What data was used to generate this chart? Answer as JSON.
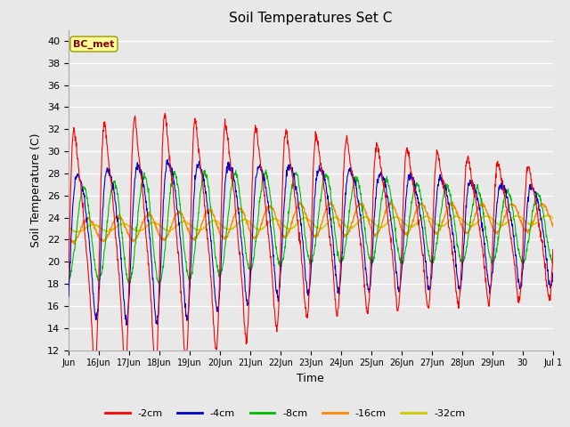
{
  "title": "Soil Temperatures Set C",
  "xlabel": "Time",
  "ylabel": "Soil Temperature (C)",
  "ylim": [
    12,
    41
  ],
  "yticks": [
    12,
    14,
    16,
    18,
    20,
    22,
    24,
    26,
    28,
    30,
    32,
    34,
    36,
    38,
    40
  ],
  "colors": {
    "-2cm": "#ff0000",
    "-4cm": "#0000cc",
    "-8cm": "#00bb00",
    "-16cm": "#ff8800",
    "-32cm": "#cccc00"
  },
  "bc_met_box_color": "#ffff99",
  "bc_met_text_color": "#880000",
  "background_color": "#e8e8e8",
  "annotation_text": "BC_met",
  "x_tick_labels": [
    "Jun",
    "16Jun",
    "17Jun",
    "18Jun",
    "19Jun",
    "20Jun",
    "21Jun",
    "22Jun",
    "23Jun",
    "24Jun",
    "25Jun",
    "26Jun",
    "27Jun",
    "28Jun",
    "29Jun",
    "30",
    "Jul 1"
  ],
  "n_points": 1440
}
